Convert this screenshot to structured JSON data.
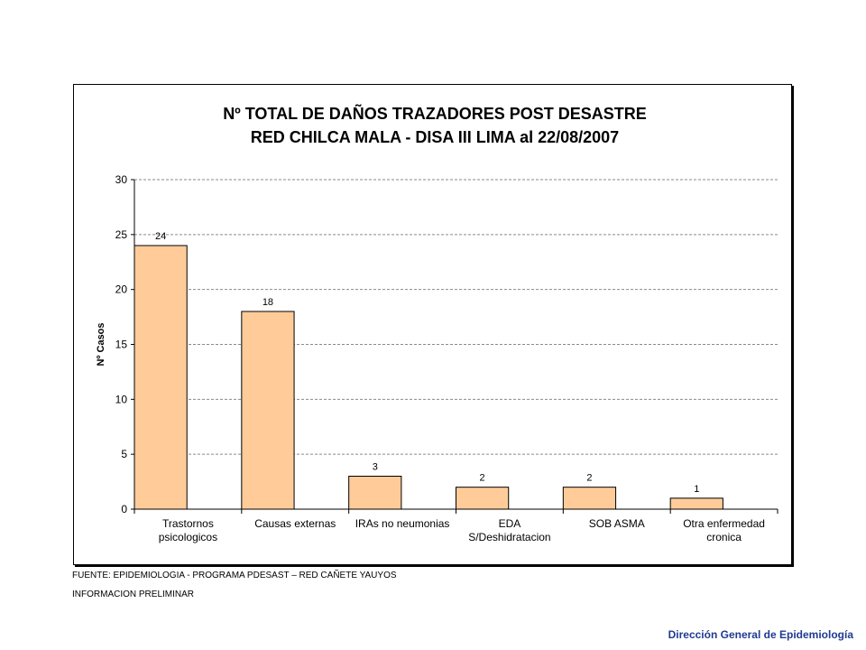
{
  "chart_data": {
    "type": "bar",
    "title": [
      "Nº TOTAL  DE DAÑOS TRAZADORES POST DESASTRE",
      "RED CHILCA MALA - DISA III LIMA al 22/08/2007"
    ],
    "xlabel": "",
    "ylabel": "Nº Casos",
    "ylim": [
      0,
      30
    ],
    "yticks": [
      0,
      5,
      10,
      15,
      20,
      25,
      30
    ],
    "grid": true,
    "categories": [
      [
        "Trastornos",
        "psicologicos"
      ],
      [
        "Causas externas"
      ],
      [
        "IRAs no neumonias"
      ],
      [
        "EDA",
        "S/Deshidratacion"
      ],
      [
        "SOB ASMA"
      ],
      [
        "Otra enfermedad",
        "cronica"
      ]
    ],
    "values": [
      24,
      18,
      3,
      2,
      2,
      1
    ],
    "data_labels": [
      "24",
      "18",
      "3",
      "2",
      "2",
      "1"
    ],
    "bar_color": "#FFCC99"
  },
  "footnotes": {
    "source": "FUENTE:  EPIDEMIOLOGIA - PROGRAMA PDESAST – RED CAÑETE YAUYOS",
    "status": "INFORMACION PRELIMINAR"
  },
  "credit": "Dirección General de Epidemiología"
}
